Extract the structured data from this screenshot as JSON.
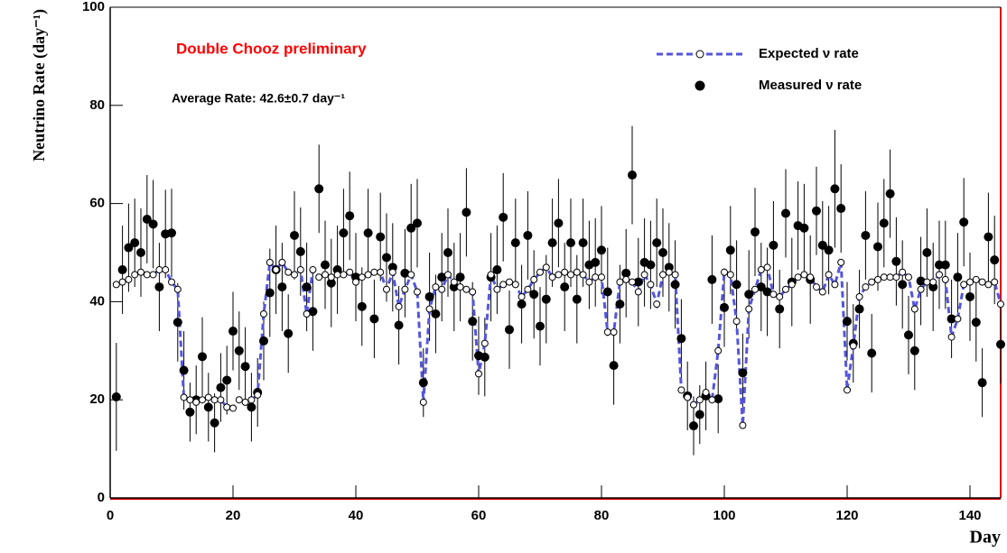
{
  "chart_data": {
    "type": "scatter",
    "annotations": [
      "Double Chooz preliminary",
      "Average Rate: 42.6±0.7 day⁻¹"
    ],
    "xlabel": "Day",
    "ylabel": "Neutrino Rate (day⁻¹)",
    "xlim": [
      0,
      145
    ],
    "ylim": [
      0,
      100
    ],
    "xticks": [
      0,
      20,
      40,
      60,
      80,
      100,
      120,
      140
    ],
    "yticks": [
      0,
      20,
      40,
      60,
      80,
      100
    ],
    "x": [
      1,
      2,
      3,
      4,
      5,
      6,
      7,
      8,
      9,
      10,
      11,
      12,
      13,
      14,
      15,
      16,
      17,
      18,
      19,
      20,
      21,
      22,
      23,
      24,
      25,
      26,
      27,
      28,
      29,
      30,
      31,
      32,
      33,
      34,
      35,
      36,
      37,
      38,
      39,
      40,
      41,
      42,
      43,
      44,
      45,
      46,
      47,
      48,
      49,
      50,
      51,
      52,
      53,
      54,
      55,
      56,
      57,
      58,
      59,
      60,
      61,
      62,
      63,
      64,
      65,
      66,
      67,
      68,
      69,
      70,
      71,
      72,
      73,
      74,
      75,
      76,
      77,
      78,
      79,
      80,
      81,
      82,
      83,
      84,
      85,
      86,
      87,
      88,
      89,
      90,
      91,
      92,
      93,
      94,
      95,
      96,
      97,
      98,
      99,
      100,
      101,
      102,
      103,
      104,
      105,
      106,
      107,
      108,
      109,
      110,
      111,
      112,
      113,
      114,
      115,
      116,
      117,
      118,
      119,
      120,
      121,
      122,
      123,
      124,
      125,
      126,
      127,
      128,
      129,
      130,
      131,
      132,
      133,
      134,
      135,
      136,
      137,
      138,
      139,
      140,
      141,
      142,
      143,
      144,
      145
    ],
    "series": [
      {
        "name": "Expected ν rate",
        "color": "#5555dd",
        "values": [
          43.5,
          44,
          44.5,
          45.5,
          46,
          45.5,
          45.5,
          46.5,
          46.5,
          44,
          42.5,
          20.5,
          20,
          19.5,
          20,
          20.5,
          20,
          20,
          18.5,
          18.3,
          20,
          19.5,
          20,
          21,
          37.5,
          48,
          46.5,
          48,
          46,
          45.5,
          46.5,
          37.5,
          46.5,
          45,
          45.5,
          45,
          45.5,
          45.5,
          46,
          44,
          45,
          45.5,
          46,
          46,
          42.5,
          46,
          39,
          42.5,
          45.5,
          42,
          19.5,
          38.5,
          43,
          42.5,
          45.5,
          44,
          43,
          42.5,
          42,
          25.3,
          31.5,
          45.5,
          42.5,
          43.5,
          44,
          43.5,
          41,
          42.5,
          44.5,
          46,
          47,
          45,
          45.5,
          46,
          45.5,
          46,
          45.5,
          44,
          45,
          45,
          33.8,
          33.8,
          44,
          44.5,
          44,
          42,
          45.5,
          43.5,
          39.5,
          45.5,
          46,
          45.5,
          22,
          20.5,
          19,
          20,
          21.5,
          20,
          30,
          46,
          45.5,
          36,
          14.8,
          38.5,
          42.5,
          46.5,
          47,
          41.5,
          41,
          42.5,
          43.5,
          45,
          45.5,
          45,
          43,
          42,
          45.5,
          43.5,
          48,
          22,
          31,
          41,
          43,
          44,
          44.5,
          45,
          45,
          45,
          46,
          45,
          38.5,
          42.5,
          44,
          44,
          45.5,
          44.5,
          32.8,
          36.5,
          43.5,
          44,
          44.5,
          44,
          43.5,
          44,
          39.5
        ]
      },
      {
        "name": "Measured ν rate",
        "color": "#000000",
        "values": [
          20.6,
          46.5,
          51,
          52,
          50,
          56.8,
          55.8,
          43,
          53.8,
          54,
          35.8,
          26,
          17.5,
          20,
          28.8,
          18.5,
          15.3,
          22.5,
          24,
          34,
          30,
          26.8,
          18.5,
          21.5,
          32,
          41.8,
          46.5,
          43,
          33.5,
          53.5,
          50.2,
          43,
          38,
          63,
          47.5,
          43.8,
          46.5,
          54,
          57.5,
          45,
          39,
          54,
          36.5,
          53.2,
          49,
          47,
          35.2,
          45.8,
          55,
          56,
          23.5,
          41,
          37.5,
          45,
          50,
          43,
          45,
          58.2,
          36,
          29,
          28.7,
          45,
          46.5,
          57.2,
          34.3,
          52,
          39.5,
          53.5,
          41.5,
          35,
          40.5,
          52,
          56,
          43,
          52,
          40.5,
          52,
          47.5,
          48,
          50.5,
          42,
          27,
          39.5,
          45.8,
          65.8,
          44,
          48,
          47.5,
          52,
          50,
          47,
          43.5,
          32.5,
          20.8,
          14.7,
          17,
          20.8,
          44.5,
          20.2,
          38.8,
          50.5,
          43.5,
          25.5,
          41.5,
          54.2,
          43,
          42,
          51.5,
          38.5,
          58,
          44,
          55.5,
          55,
          44.5,
          58.5,
          51.5,
          50.5,
          63,
          59,
          36,
          31.5,
          38.5,
          53.5,
          29.5,
          51.2,
          56,
          62,
          48.2,
          43.5,
          33.2,
          30,
          44.2,
          50,
          43,
          47.5,
          47.5,
          36.5,
          45,
          56.2,
          41,
          35.8,
          23.5,
          53.2,
          48.5,
          31.3
        ],
        "errors": [
          11,
          9,
          9,
          9,
          9,
          9,
          9,
          9,
          9,
          9,
          8,
          8,
          6,
          7,
          8,
          7,
          6,
          7,
          7,
          8,
          8,
          8,
          7,
          7,
          8,
          9,
          9,
          9,
          8,
          9,
          9,
          9,
          8,
          9,
          9,
          9,
          9,
          9,
          9,
          9,
          8,
          9,
          8,
          9,
          9,
          9,
          8,
          9,
          9,
          9,
          7,
          9,
          8,
          9,
          9,
          9,
          9,
          9,
          8,
          8,
          8,
          9,
          9,
          9,
          8,
          9,
          8,
          9,
          9,
          8,
          9,
          9,
          9,
          9,
          9,
          9,
          9,
          9,
          9,
          9,
          9,
          8,
          8,
          9,
          10,
          9,
          9,
          9,
          9,
          9,
          9,
          9,
          8,
          7,
          6,
          6,
          7,
          9,
          7,
          8,
          9,
          9,
          8,
          9,
          9,
          9,
          9,
          9,
          8,
          9,
          9,
          9,
          9,
          9,
          9,
          9,
          9,
          12,
          9,
          8,
          8,
          8,
          9,
          8,
          9,
          9,
          9,
          9,
          9,
          8,
          8,
          9,
          9,
          9,
          9,
          9,
          8,
          9,
          9,
          9,
          8,
          7,
          9,
          9,
          8
        ]
      }
    ]
  }
}
